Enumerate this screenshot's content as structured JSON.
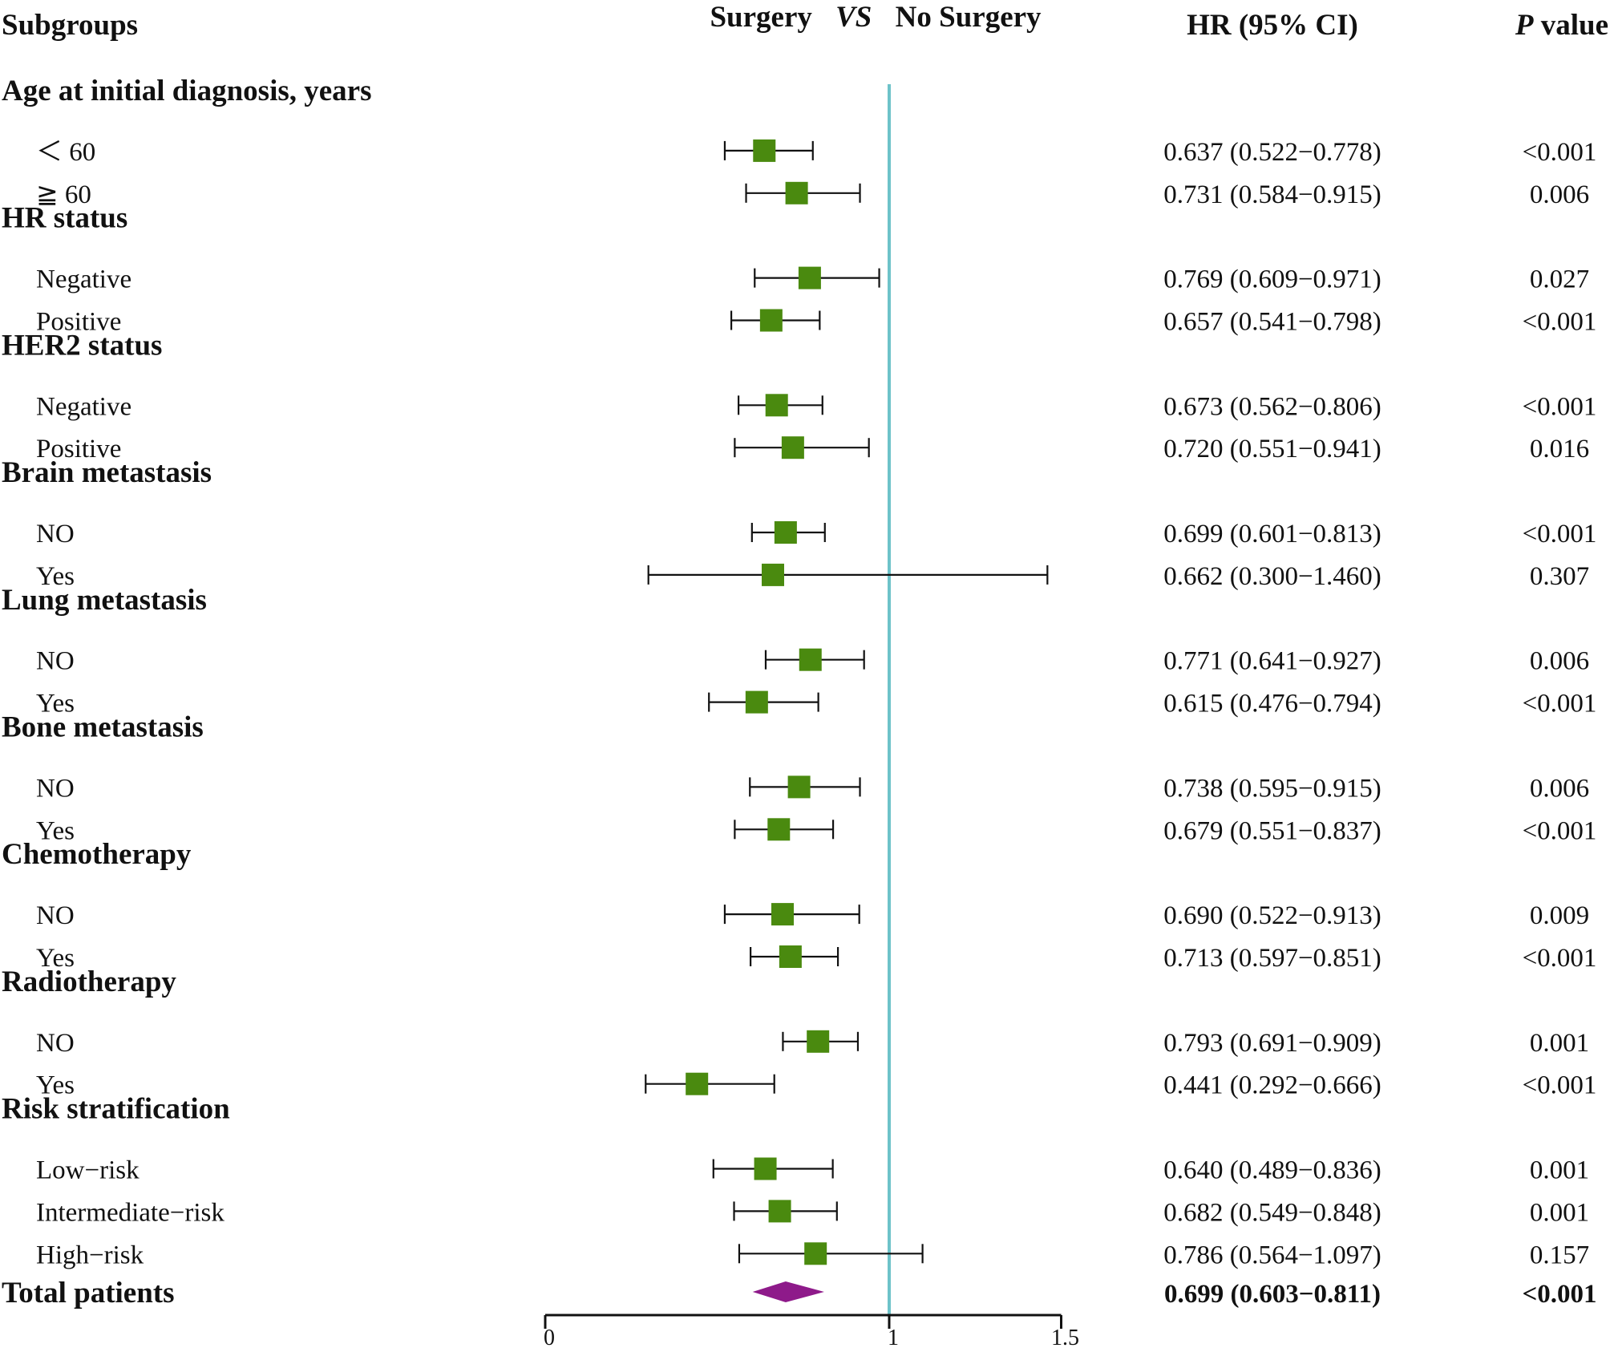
{
  "header": {
    "subgroups": "Subgroups",
    "compare_left": "Surgery",
    "compare_vs": "VS",
    "compare_right": "No Surgery",
    "hr_col": "HR (95% CI)",
    "p_col_italic": "P",
    "p_col_rest": " value"
  },
  "colors": {
    "marker": "#4a8a0f",
    "summary": "#8e1a8a",
    "reference_line": "#6ec3c9",
    "ci_line": "#111111"
  },
  "chart_data": {
    "type": "forest",
    "title": "Surgery VS No Surgery",
    "xlabel": "",
    "xlim": [
      0,
      1.5
    ],
    "x_ticks": [
      "0",
      "1",
      "1.5"
    ],
    "reference_line": 1,
    "rows": [
      {
        "kind": "group",
        "label": "Age at initial diagnosis, years"
      },
      {
        "kind": "item",
        "label": "＜ 60",
        "hr": 0.637,
        "lo": 0.522,
        "hi": 0.778,
        "ci_text": "0.637 (0.522−0.778)",
        "p": "<0.001"
      },
      {
        "kind": "item",
        "label": "≧ 60",
        "hr": 0.731,
        "lo": 0.584,
        "hi": 0.915,
        "ci_text": "0.731 (0.584−0.915)",
        "p": "0.006"
      },
      {
        "kind": "group",
        "label": "HR status"
      },
      {
        "kind": "item",
        "label": "Negative",
        "hr": 0.769,
        "lo": 0.609,
        "hi": 0.971,
        "ci_text": "0.769 (0.609−0.971)",
        "p": "0.027"
      },
      {
        "kind": "item",
        "label": "Positive",
        "hr": 0.657,
        "lo": 0.541,
        "hi": 0.798,
        "ci_text": "0.657 (0.541−0.798)",
        "p": "<0.001"
      },
      {
        "kind": "group",
        "label": "HER2 status"
      },
      {
        "kind": "item",
        "label": "Negative",
        "hr": 0.673,
        "lo": 0.562,
        "hi": 0.806,
        "ci_text": "0.673 (0.562−0.806)",
        "p": "<0.001"
      },
      {
        "kind": "item",
        "label": "Positive",
        "hr": 0.72,
        "lo": 0.551,
        "hi": 0.941,
        "ci_text": "0.720 (0.551−0.941)",
        "p": "0.016"
      },
      {
        "kind": "group",
        "label": "Brain metastasis"
      },
      {
        "kind": "item",
        "label": "NO",
        "hr": 0.699,
        "lo": 0.601,
        "hi": 0.813,
        "ci_text": "0.699 (0.601−0.813)",
        "p": "<0.001"
      },
      {
        "kind": "item",
        "label": "Yes",
        "hr": 0.662,
        "lo": 0.3,
        "hi": 1.46,
        "ci_text": "0.662 (0.300−1.460)",
        "p": "0.307"
      },
      {
        "kind": "group",
        "label": "Lung metastasis"
      },
      {
        "kind": "item",
        "label": "NO",
        "hr": 0.771,
        "lo": 0.641,
        "hi": 0.927,
        "ci_text": "0.771 (0.641−0.927)",
        "p": "0.006"
      },
      {
        "kind": "item",
        "label": "Yes",
        "hr": 0.615,
        "lo": 0.476,
        "hi": 0.794,
        "ci_text": "0.615 (0.476−0.794)",
        "p": "<0.001"
      },
      {
        "kind": "group",
        "label": "Bone metastasis"
      },
      {
        "kind": "item",
        "label": "NO",
        "hr": 0.738,
        "lo": 0.595,
        "hi": 0.915,
        "ci_text": "0.738 (0.595−0.915)",
        "p": "0.006"
      },
      {
        "kind": "item",
        "label": "Yes",
        "hr": 0.679,
        "lo": 0.551,
        "hi": 0.837,
        "ci_text": "0.679 (0.551−0.837)",
        "p": "<0.001"
      },
      {
        "kind": "group",
        "label": "Chemotherapy"
      },
      {
        "kind": "item",
        "label": "NO",
        "hr": 0.69,
        "lo": 0.522,
        "hi": 0.913,
        "ci_text": "0.690 (0.522−0.913)",
        "p": "0.009"
      },
      {
        "kind": "item",
        "label": "Yes",
        "hr": 0.713,
        "lo": 0.597,
        "hi": 0.851,
        "ci_text": "0.713 (0.597−0.851)",
        "p": "<0.001"
      },
      {
        "kind": "group",
        "label": "Radiotherapy"
      },
      {
        "kind": "item",
        "label": "NO",
        "hr": 0.793,
        "lo": 0.691,
        "hi": 0.909,
        "ci_text": "0.793 (0.691−0.909)",
        "p": "0.001"
      },
      {
        "kind": "item",
        "label": "Yes",
        "hr": 0.441,
        "lo": 0.292,
        "hi": 0.666,
        "ci_text": "0.441 (0.292−0.666)",
        "p": "<0.001"
      },
      {
        "kind": "group",
        "label": "Risk stratification"
      },
      {
        "kind": "item",
        "label": "Low−risk",
        "hr": 0.64,
        "lo": 0.489,
        "hi": 0.836,
        "ci_text": "0.640 (0.489−0.836)",
        "p": "0.001"
      },
      {
        "kind": "item",
        "label": "Intermediate−risk",
        "hr": 0.682,
        "lo": 0.549,
        "hi": 0.848,
        "ci_text": "0.682 (0.549−0.848)",
        "p": "0.001"
      },
      {
        "kind": "item",
        "label": "High−risk",
        "hr": 0.786,
        "lo": 0.564,
        "hi": 1.097,
        "ci_text": "0.786 (0.564−1.097)",
        "p": "0.157"
      }
    ],
    "total": {
      "label": "Total patients",
      "hr": 0.699,
      "lo": 0.603,
      "hi": 0.811,
      "ci_text": "0.699 (0.603−0.811)",
      "p": "<0.001"
    }
  }
}
